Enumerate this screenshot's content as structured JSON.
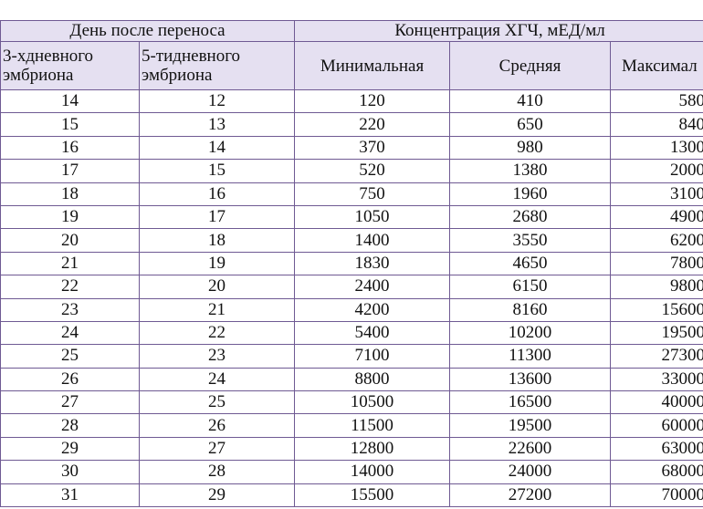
{
  "table": {
    "group_headers": [
      "День после переноса",
      "Концентрация ХГЧ, мЕД/мл"
    ],
    "headers": [
      "3-хдневного эмбриона",
      "5-тидневного эмбриона",
      "Минимальная",
      "Средняя",
      "Максимал"
    ],
    "rows": [
      [
        "14",
        "12",
        "120",
        "410",
        "580"
      ],
      [
        "15",
        "13",
        "220",
        "650",
        "840"
      ],
      [
        "16",
        "14",
        "370",
        "980",
        "1300"
      ],
      [
        "17",
        "15",
        "520",
        "1380",
        "2000"
      ],
      [
        "18",
        "16",
        "750",
        "1960",
        "3100"
      ],
      [
        "19",
        "17",
        "1050",
        "2680",
        "4900"
      ],
      [
        "20",
        "18",
        "1400",
        "3550",
        "6200"
      ],
      [
        "21",
        "19",
        "1830",
        "4650",
        "7800"
      ],
      [
        "22",
        "20",
        "2400",
        "6150",
        "9800"
      ],
      [
        "23",
        "21",
        "4200",
        "8160",
        "15600"
      ],
      [
        "24",
        "22",
        "5400",
        "10200",
        "19500"
      ],
      [
        "25",
        "23",
        "7100",
        "11300",
        "27300"
      ],
      [
        "26",
        "24",
        "8800",
        "13600",
        "33000"
      ],
      [
        "27",
        "25",
        "10500",
        "16500",
        "40000"
      ],
      [
        "28",
        "26",
        "11500",
        "19500",
        "60000"
      ],
      [
        "29",
        "27",
        "12800",
        "22600",
        "63000"
      ],
      [
        "30",
        "28",
        "14000",
        "24000",
        "68000"
      ],
      [
        "31",
        "29",
        "15500",
        "27200",
        "70000"
      ]
    ]
  }
}
